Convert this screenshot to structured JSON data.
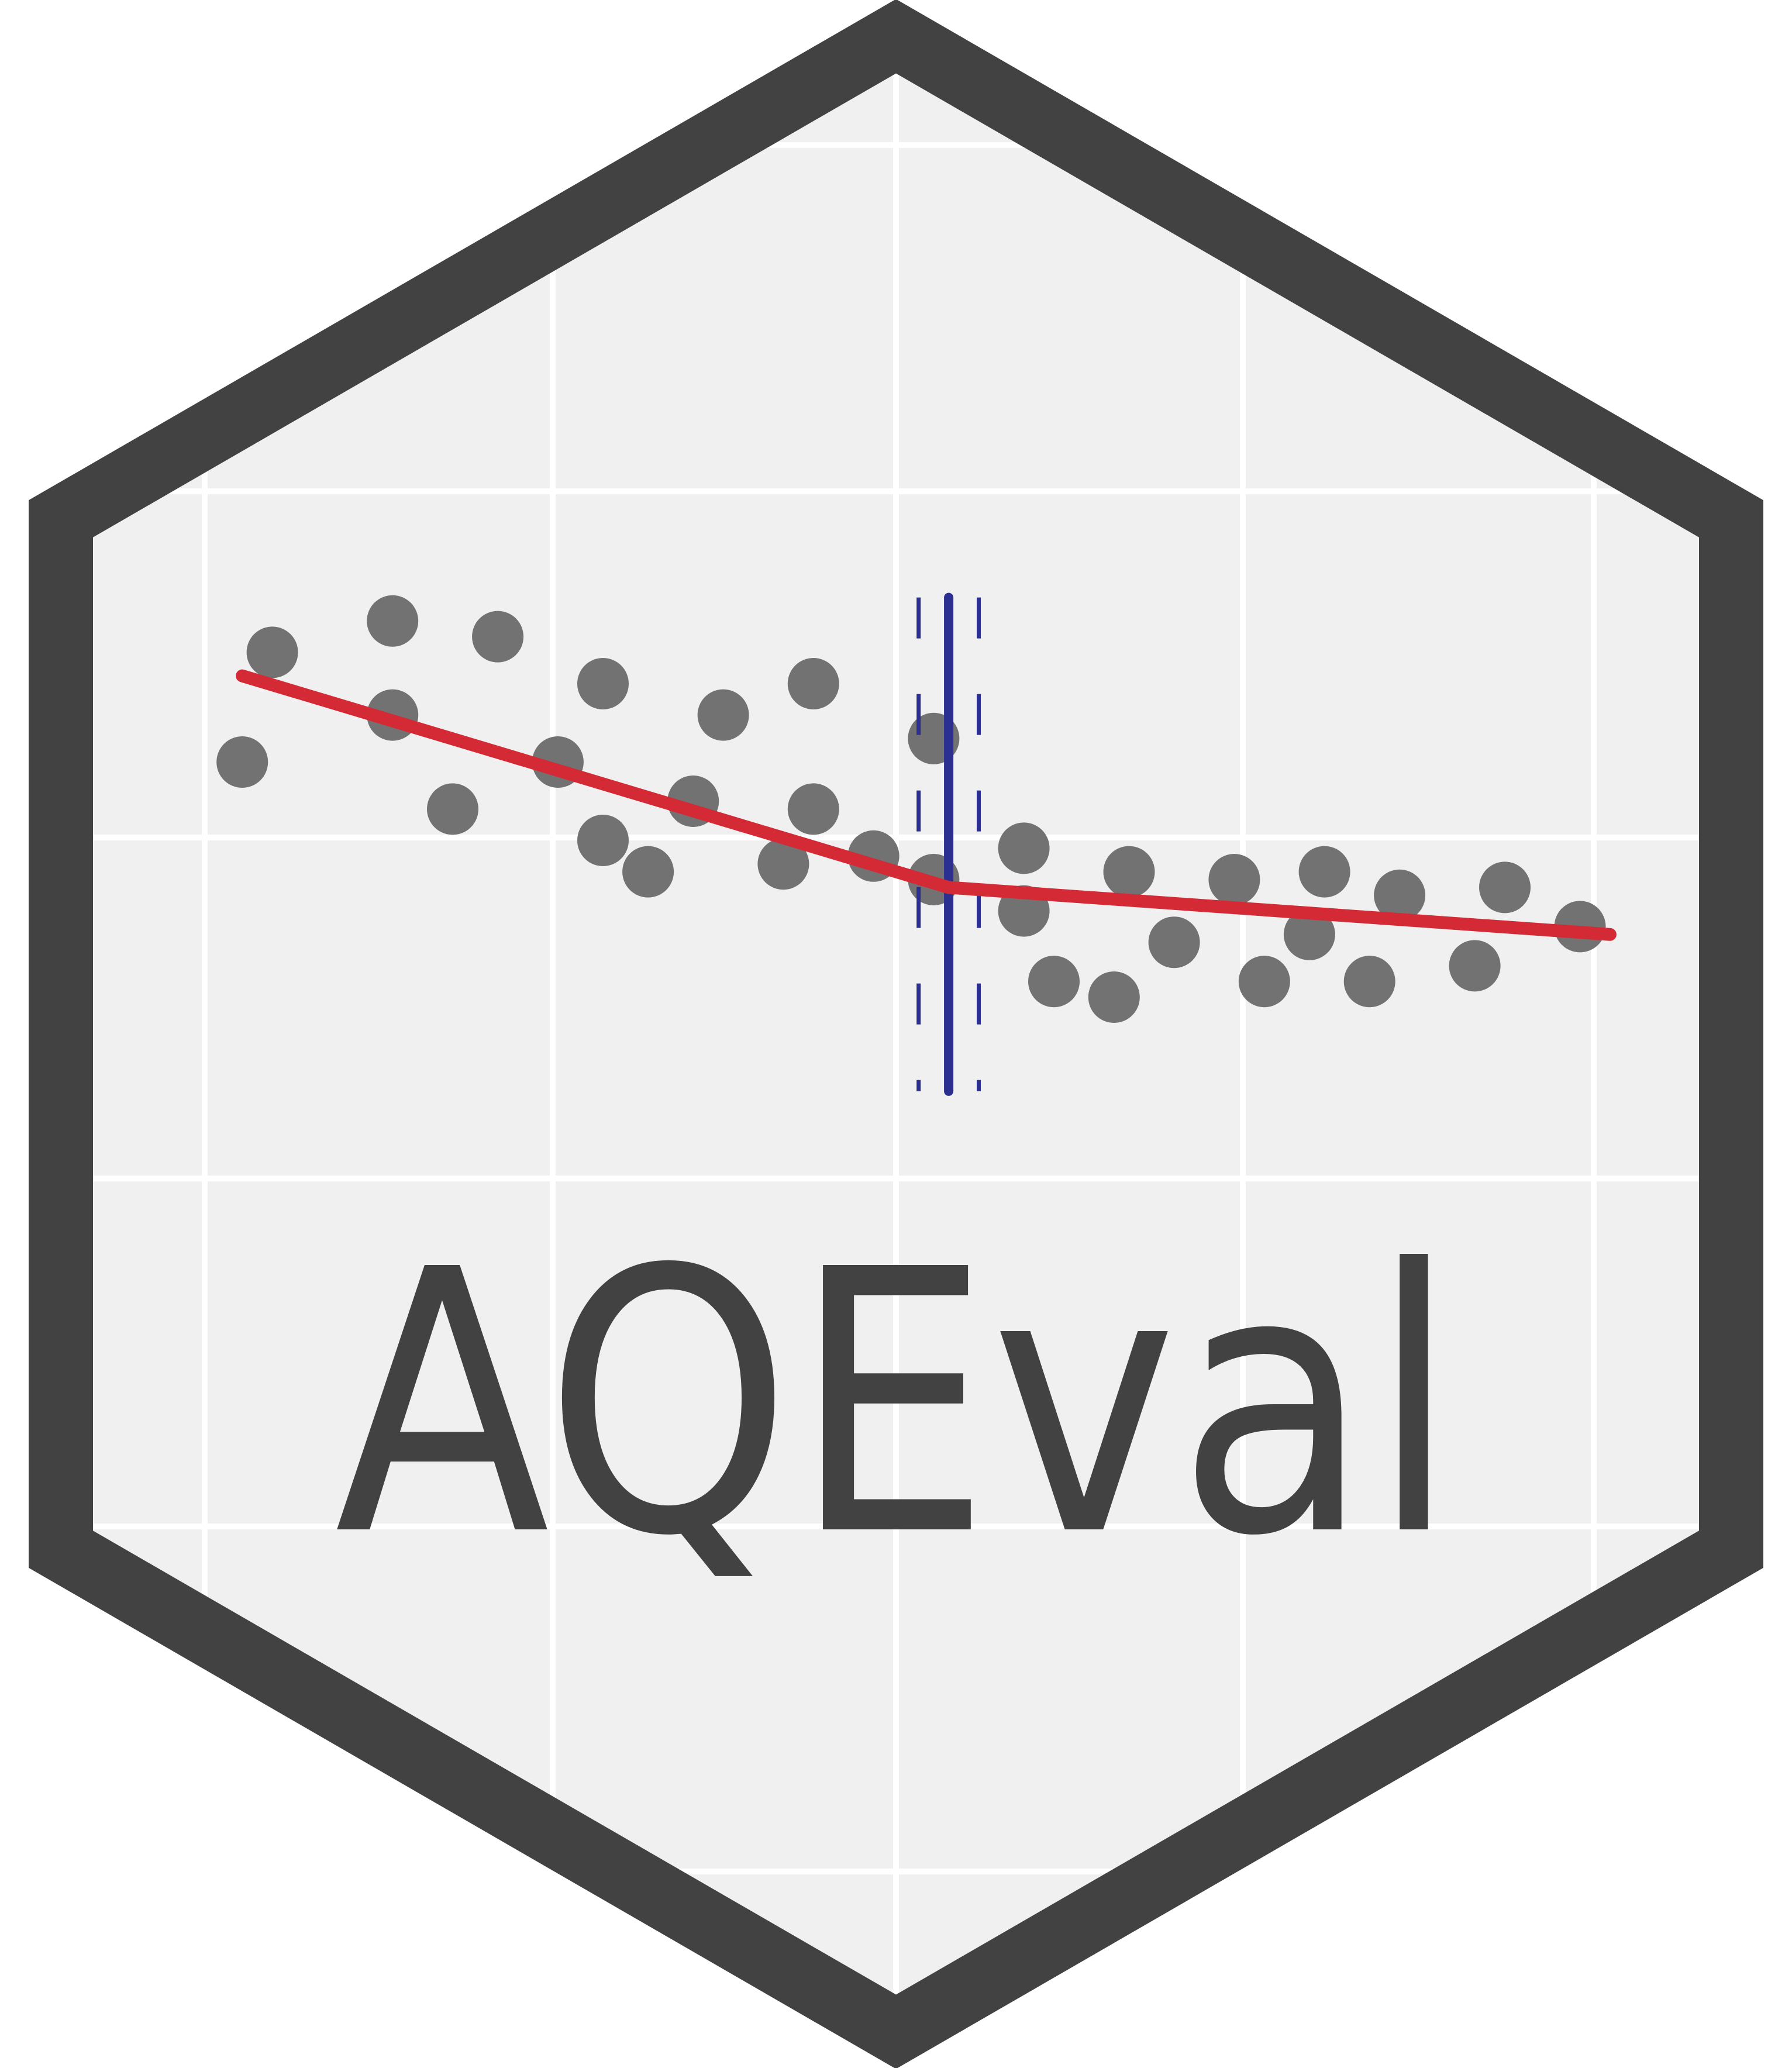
{
  "logo": {
    "title": "AQEval",
    "colors": {
      "hex_border": "#424242",
      "panel_background": "#f0f0f0",
      "grid_lines": "#ffffff",
      "points": "#727272",
      "trend_line": "#d42a35",
      "breakpoint_line": "#2b2f8f",
      "title_text": "#424242"
    }
  },
  "chart_data": {
    "type": "scatter",
    "title": "",
    "xlabel": "",
    "ylabel": "",
    "xlim": [
      0,
      10
    ],
    "ylim": [
      0,
      10
    ],
    "grid": true,
    "legend": "none",
    "points": [
      {
        "x": 0.8,
        "y": 6.9
      },
      {
        "x": 0.6,
        "y": 5.5
      },
      {
        "x": 1.6,
        "y": 7.3
      },
      {
        "x": 1.6,
        "y": 6.1
      },
      {
        "x": 2.0,
        "y": 4.9
      },
      {
        "x": 2.3,
        "y": 7.1
      },
      {
        "x": 2.7,
        "y": 5.5
      },
      {
        "x": 3.0,
        "y": 6.5
      },
      {
        "x": 3.0,
        "y": 4.5
      },
      {
        "x": 3.3,
        "y": 4.1
      },
      {
        "x": 3.6,
        "y": 5.0
      },
      {
        "x": 3.8,
        "y": 6.1
      },
      {
        "x": 4.2,
        "y": 4.2
      },
      {
        "x": 4.4,
        "y": 6.5
      },
      {
        "x": 4.4,
        "y": 4.9
      },
      {
        "x": 4.8,
        "y": 4.3
      },
      {
        "x": 5.2,
        "y": 5.8
      },
      {
        "x": 5.2,
        "y": 4.0
      },
      {
        "x": 5.8,
        "y": 4.4
      },
      {
        "x": 5.8,
        "y": 3.6
      },
      {
        "x": 6.0,
        "y": 2.7
      },
      {
        "x": 6.4,
        "y": 2.5
      },
      {
        "x": 6.5,
        "y": 4.1
      },
      {
        "x": 6.8,
        "y": 3.2
      },
      {
        "x": 7.2,
        "y": 4.0
      },
      {
        "x": 7.4,
        "y": 2.7
      },
      {
        "x": 7.7,
        "y": 3.3
      },
      {
        "x": 7.8,
        "y": 4.1
      },
      {
        "x": 8.1,
        "y": 2.7
      },
      {
        "x": 8.3,
        "y": 3.8
      },
      {
        "x": 8.8,
        "y": 2.9
      },
      {
        "x": 9.0,
        "y": 3.9
      },
      {
        "x": 9.5,
        "y": 3.4
      }
    ],
    "trend": {
      "segments": [
        {
          "x": [
            0.6,
            5.3
          ],
          "y": [
            6.6,
            3.9
          ]
        },
        {
          "x": [
            5.3,
            9.7
          ],
          "y": [
            3.9,
            3.3
          ]
        }
      ]
    },
    "breakpoint": {
      "x": 5.3,
      "ci": [
        5.1,
        5.5
      ],
      "y_range": [
        1.3,
        7.6
      ]
    }
  }
}
